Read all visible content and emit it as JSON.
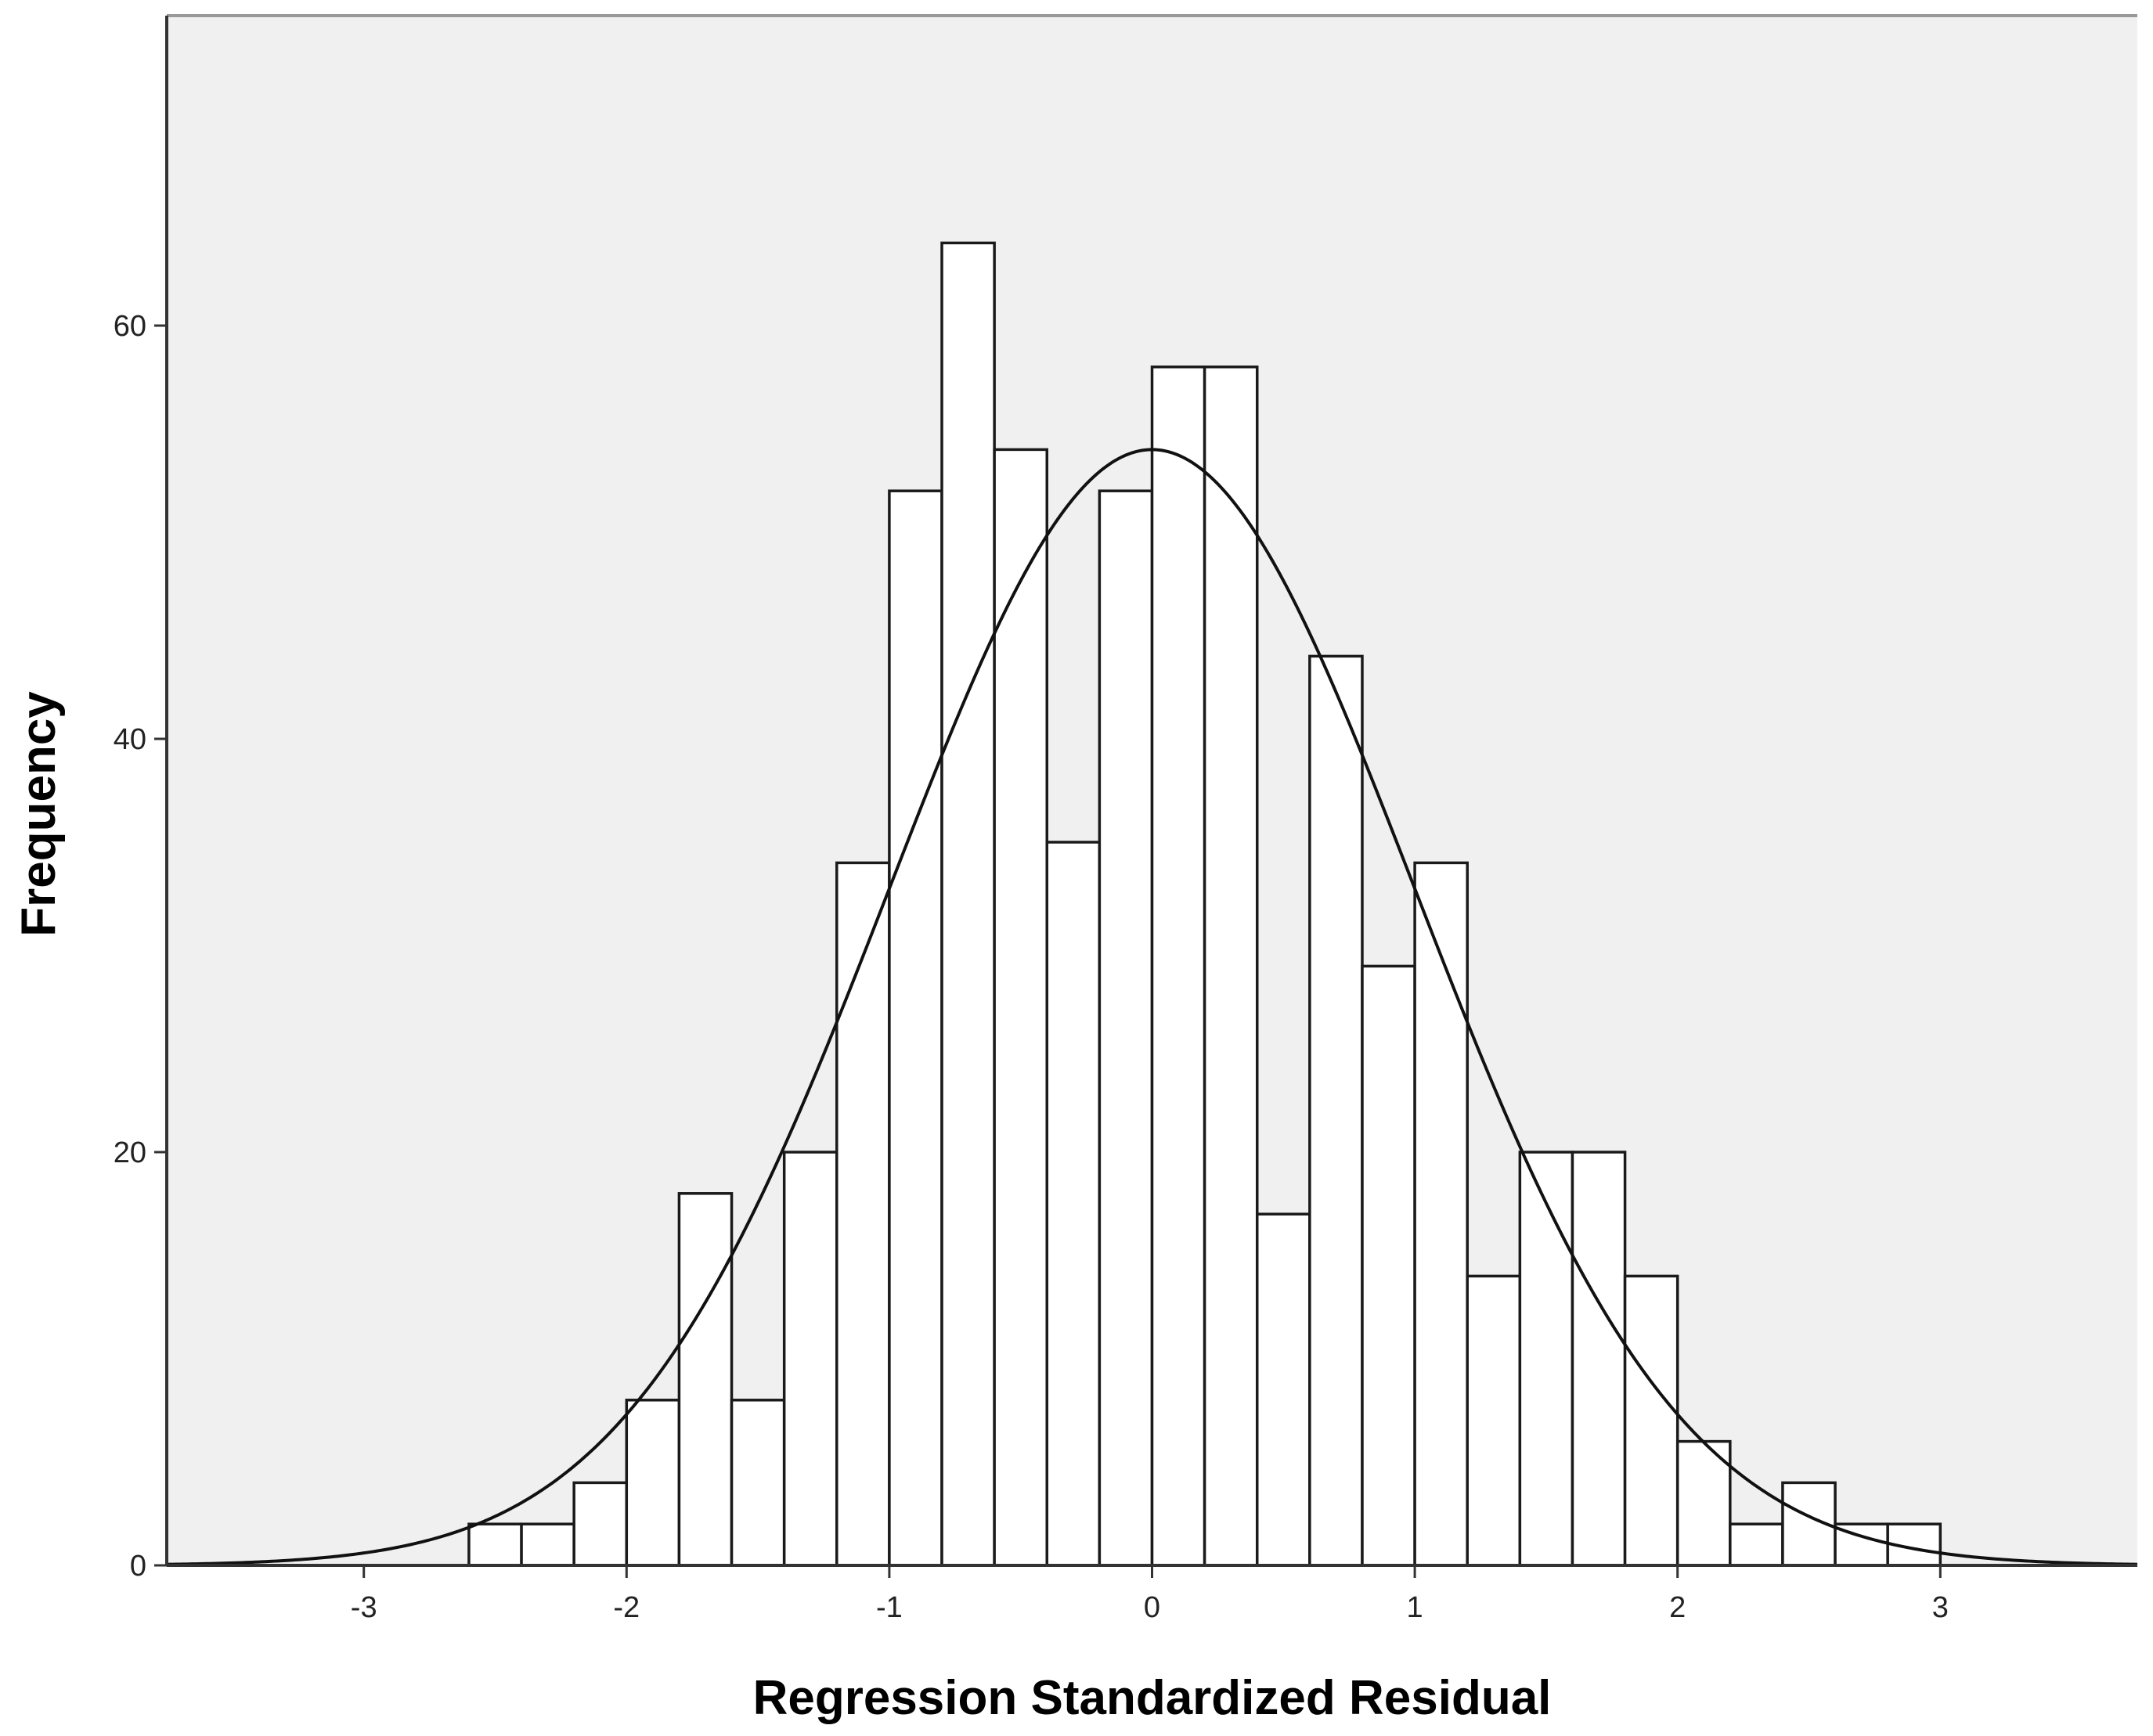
{
  "chart_data": {
    "type": "bar",
    "title": "",
    "xlabel": "Regression Standardized Residual",
    "ylabel": "Frequency",
    "xlim": [
      -3.75,
      3.75
    ],
    "ylim": [
      0,
      75
    ],
    "x_ticks": [
      -3,
      -2,
      -1,
      0,
      1,
      2,
      3
    ],
    "x_tick_labels": [
      "-3",
      "-2",
      "-1",
      "0",
      "1",
      "2",
      "3"
    ],
    "y_ticks": [
      0,
      20,
      40,
      60
    ],
    "y_tick_labels": [
      "0",
      "20",
      "40",
      "60"
    ],
    "bin_width": 0.2,
    "bins": [
      {
        "start": -2.6,
        "count": 2
      },
      {
        "start": -2.4,
        "count": 2
      },
      {
        "start": -2.2,
        "count": 4
      },
      {
        "start": -2.0,
        "count": 8
      },
      {
        "start": -1.8,
        "count": 18
      },
      {
        "start": -1.6,
        "count": 8
      },
      {
        "start": -1.4,
        "count": 20
      },
      {
        "start": -1.2,
        "count": 34
      },
      {
        "start": -1.0,
        "count": 52
      },
      {
        "start": -0.8,
        "count": 64
      },
      {
        "start": -0.6,
        "count": 54
      },
      {
        "start": -0.4,
        "count": 35
      },
      {
        "start": -0.2,
        "count": 52
      },
      {
        "start": 0.0,
        "count": 58
      },
      {
        "start": 0.2,
        "count": 58
      },
      {
        "start": 0.4,
        "count": 17
      },
      {
        "start": 0.6,
        "count": 44
      },
      {
        "start": 0.8,
        "count": 29
      },
      {
        "start": 1.0,
        "count": 34
      },
      {
        "start": 1.2,
        "count": 14
      },
      {
        "start": 1.4,
        "count": 20
      },
      {
        "start": 1.6,
        "count": 20
      },
      {
        "start": 1.8,
        "count": 14
      },
      {
        "start": 2.0,
        "count": 6
      },
      {
        "start": 2.2,
        "count": 2
      },
      {
        "start": 2.4,
        "count": 4
      },
      {
        "start": 2.6,
        "count": 2
      },
      {
        "start": 2.8,
        "count": 2
      }
    ],
    "normal_curve": {
      "mean": 0,
      "std_dev": 1,
      "peak": 54
    },
    "grid": false,
    "legend": "none",
    "colors": {
      "plot_background": "#f0f0f0",
      "bar_fill": "#ffffff",
      "bar_stroke": "#1a1a1a",
      "curve": "#111111",
      "axis": "#333333"
    }
  }
}
